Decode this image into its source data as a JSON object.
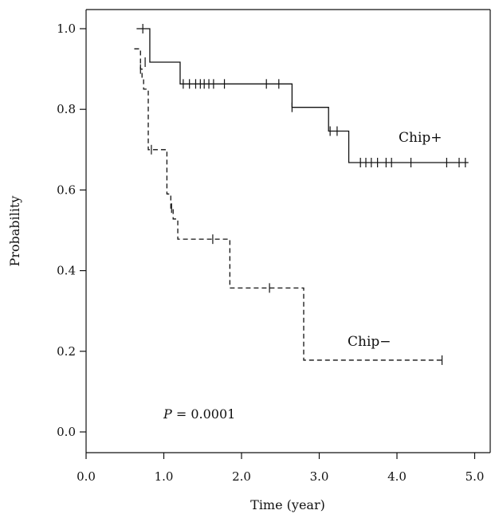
{
  "chart_data": {
    "type": "line",
    "subtype": "kaplan-meier",
    "title": "",
    "xlabel": "Time (year)",
    "ylabel": "Probability",
    "xlim": [
      0,
      5
    ],
    "ylim": [
      0,
      1
    ],
    "x_ticks": [
      "0.0",
      "1.0",
      "2.0",
      "3.0",
      "4.0",
      "5.0"
    ],
    "y_ticks": [
      "0.0",
      "0.2",
      "0.4",
      "0.6",
      "0.8",
      "1.0"
    ],
    "grid": false,
    "legend": "none",
    "annotation": {
      "italic_part": "P",
      "rest": " = 0.0001"
    },
    "series": [
      {
        "name": "Chip+",
        "line_style": "solid",
        "color": "#111111",
        "steps": [
          [
            0.65,
            1.0
          ],
          [
            0.82,
            0.917
          ],
          [
            1.21,
            0.863
          ],
          [
            2.65,
            0.805
          ],
          [
            3.12,
            0.746
          ],
          [
            3.38,
            0.668
          ],
          [
            4.92,
            0.668
          ]
        ],
        "censored": [
          [
            0.73,
            1.0
          ],
          [
            0.76,
            0.917
          ],
          [
            1.25,
            0.863
          ],
          [
            1.33,
            0.863
          ],
          [
            1.41,
            0.863
          ],
          [
            1.47,
            0.863
          ],
          [
            1.52,
            0.863
          ],
          [
            1.58,
            0.863
          ],
          [
            1.64,
            0.863
          ],
          [
            1.78,
            0.863
          ],
          [
            2.32,
            0.863
          ],
          [
            2.48,
            0.863
          ],
          [
            2.65,
            0.805
          ],
          [
            3.14,
            0.746
          ],
          [
            3.23,
            0.746
          ],
          [
            3.53,
            0.668
          ],
          [
            3.6,
            0.668
          ],
          [
            3.67,
            0.668
          ],
          [
            3.75,
            0.668
          ],
          [
            3.86,
            0.668
          ],
          [
            3.93,
            0.668
          ],
          [
            4.18,
            0.668
          ],
          [
            4.64,
            0.668
          ],
          [
            4.8,
            0.668
          ],
          [
            4.88,
            0.668
          ]
        ]
      },
      {
        "name": "Chip−",
        "line_style": "dashed",
        "color": "#111111",
        "steps": [
          [
            0.62,
            0.95
          ],
          [
            0.7,
            0.9
          ],
          [
            0.72,
            0.877
          ],
          [
            0.74,
            0.85
          ],
          [
            0.8,
            0.7
          ],
          [
            1.04,
            0.59
          ],
          [
            1.09,
            0.555
          ],
          [
            1.12,
            0.528
          ],
          [
            1.18,
            0.478
          ],
          [
            1.85,
            0.357
          ],
          [
            2.8,
            0.178
          ],
          [
            4.58,
            0.178
          ]
        ],
        "censored": [
          [
            0.7,
            0.9
          ],
          [
            0.84,
            0.7
          ],
          [
            1.1,
            0.555
          ],
          [
            1.63,
            0.478
          ],
          [
            2.36,
            0.357
          ],
          [
            4.58,
            0.178
          ]
        ]
      }
    ]
  }
}
